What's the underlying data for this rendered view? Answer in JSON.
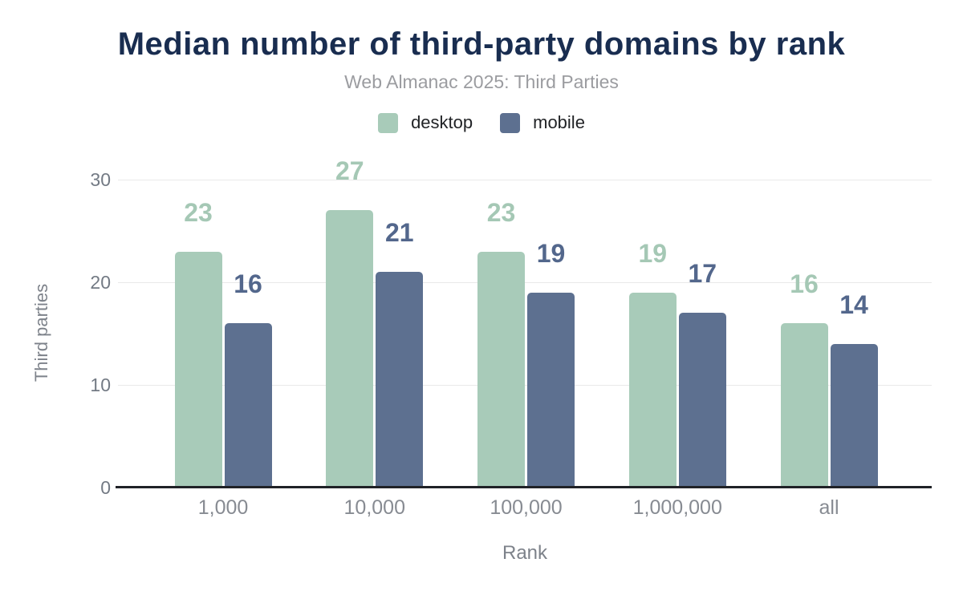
{
  "title": "Median number of third-party domains by rank",
  "subtitle": "Web Almanac 2025: Third Parties",
  "chart_data": {
    "type": "bar",
    "title": "Median number of third-party domains by rank",
    "subtitle": "Web Almanac 2025: Third Parties",
    "categories": [
      "1,000",
      "10,000",
      "100,000",
      "1,000,000",
      "all"
    ],
    "series": [
      {
        "name": "desktop",
        "color": "#a8cbb9",
        "label_color": "#a5c8b5",
        "values": [
          23,
          27,
          23,
          19,
          16
        ]
      },
      {
        "name": "mobile",
        "color": "#5d7090",
        "label_color": "#53678c",
        "values": [
          16,
          21,
          19,
          17,
          14
        ]
      }
    ],
    "xlabel": "Rank",
    "ylabel": "Third parties",
    "yticks": [
      0,
      10,
      20,
      30
    ],
    "ylim": [
      0,
      32
    ],
    "grid": "horizontal",
    "legend_position": "top",
    "data_labels": true
  },
  "colors": {
    "title": "#192d50",
    "subtitle": "#9b9ca0",
    "axis_text": "#7d828a",
    "gridline": "#e9e9e9",
    "baseline": "#202227",
    "background": "#ffffff"
  }
}
